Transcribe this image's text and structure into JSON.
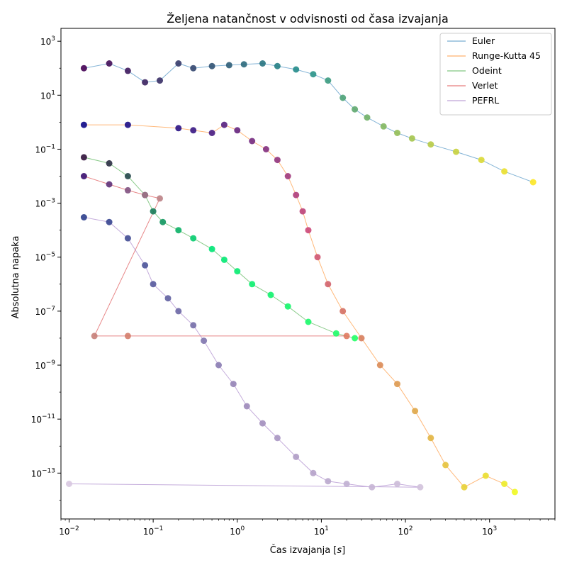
{
  "chart_data": {
    "type": "scatter",
    "title": "Željena natančnost v odvisnosti od časa izvajanja",
    "xlabel": "Čas izvajanja [s]",
    "ylabel": "Absolutna napaka",
    "xscale": "log",
    "yscale": "log",
    "xlim": [
      0.008,
      6000
    ],
    "ylim": [
      2e-15,
      3000
    ],
    "x_tick_exponents": [
      -2,
      -1,
      0,
      1,
      2,
      3
    ],
    "y_tick_exponents": [
      3,
      1,
      -1,
      -3,
      -5,
      -7,
      -9,
      -11,
      -13
    ],
    "grid": false,
    "legend_position": "top-right",
    "series": [
      {
        "name": "Euler",
        "line_color": "#1f77b4",
        "point_color": "#21918c",
        "gradient": [
          "#440154",
          "#21918c",
          "#fde725"
        ],
        "points": [
          [
            0.015,
            100
          ],
          [
            0.03,
            150
          ],
          [
            0.05,
            80
          ],
          [
            0.08,
            30
          ],
          [
            0.12,
            35
          ],
          [
            0.2,
            150
          ],
          [
            0.3,
            100
          ],
          [
            0.5,
            120
          ],
          [
            0.8,
            130
          ],
          [
            1.2,
            140
          ],
          [
            2,
            150
          ],
          [
            3,
            120
          ],
          [
            5,
            90
          ],
          [
            8,
            60
          ],
          [
            12,
            35
          ],
          [
            18,
            8
          ],
          [
            25,
            3
          ],
          [
            35,
            1.5
          ],
          [
            55,
            0.7
          ],
          [
            80,
            0.4
          ],
          [
            120,
            0.25
          ],
          [
            200,
            0.15
          ],
          [
            400,
            0.08
          ],
          [
            800,
            0.04
          ],
          [
            1500,
            0.015
          ],
          [
            3300,
            0.006
          ]
        ]
      },
      {
        "name": "Runge-Kutta 45",
        "line_color": "#ff7f0e",
        "point_color": "#f89540",
        "gradient": [
          "#0d0887",
          "#cc4778",
          "#f0f921"
        ],
        "points": [
          [
            0.015,
            0.8
          ],
          [
            0.05,
            0.8
          ],
          [
            0.2,
            0.6
          ],
          [
            0.3,
            0.5
          ],
          [
            0.5,
            0.4
          ],
          [
            0.7,
            0.8
          ],
          [
            1.0,
            0.5
          ],
          [
            1.5,
            0.2
          ],
          [
            2.2,
            0.1
          ],
          [
            3,
            0.04
          ],
          [
            4,
            0.01
          ],
          [
            5,
            0.002
          ],
          [
            6,
            0.0005
          ],
          [
            7,
            0.0001
          ],
          [
            9,
            1e-05
          ],
          [
            12,
            1e-06
          ],
          [
            18,
            1e-07
          ],
          [
            30,
            1e-08
          ],
          [
            50,
            1e-09
          ],
          [
            80,
            2e-10
          ],
          [
            130,
            2e-11
          ],
          [
            200,
            2e-12
          ],
          [
            300,
            2e-13
          ],
          [
            500,
            3e-14
          ],
          [
            900,
            8e-14
          ],
          [
            1500,
            4e-14
          ],
          [
            2000,
            2e-14
          ]
        ]
      },
      {
        "name": "Odeint",
        "line_color": "#2ca02c",
        "point_color": "#27ad81",
        "gradient": [
          "#30123b",
          "#00e676",
          "#22ff66"
        ],
        "points": [
          [
            0.015,
            0.05
          ],
          [
            0.03,
            0.03
          ],
          [
            0.05,
            0.01
          ],
          [
            0.08,
            0.002
          ],
          [
            0.1,
            0.0005
          ],
          [
            0.13,
            0.0002
          ],
          [
            0.2,
            0.0001
          ],
          [
            0.3,
            5e-05
          ],
          [
            0.5,
            2e-05
          ],
          [
            0.7,
            8e-06
          ],
          [
            1,
            3e-06
          ],
          [
            1.5,
            1e-06
          ],
          [
            2.5,
            4e-07
          ],
          [
            4,
            1.5e-07
          ],
          [
            7,
            4e-08
          ],
          [
            15,
            1.5e-08
          ],
          [
            25,
            1e-08
          ]
        ]
      },
      {
        "name": "Verlet",
        "line_color": "#d62728",
        "point_color": "#b5838d",
        "gradient": [
          "#3b0f70",
          "#b5838d",
          "#e07a5f"
        ],
        "points": [
          [
            0.015,
            0.01
          ],
          [
            0.03,
            0.005
          ],
          [
            0.05,
            0.003
          ],
          [
            0.08,
            0.002
          ],
          [
            0.12,
            0.0015
          ],
          [
            0.02,
            1.2e-08
          ],
          [
            0.05,
            1.2e-08
          ],
          [
            20,
            1.2e-08
          ]
        ]
      },
      {
        "name": "PEFRL",
        "line_color": "#9467bd",
        "point_color": "#c9b3d9",
        "gradient": [
          "#2c3e8c",
          "#9a86b8",
          "#d8c8e0"
        ],
        "points": [
          [
            0.015,
            0.0003
          ],
          [
            0.03,
            0.0002
          ],
          [
            0.05,
            5e-05
          ],
          [
            0.08,
            5e-06
          ],
          [
            0.1,
            1e-06
          ],
          [
            0.15,
            3e-07
          ],
          [
            0.2,
            1e-07
          ],
          [
            0.3,
            3e-08
          ],
          [
            0.4,
            8e-09
          ],
          [
            0.6,
            1e-09
          ],
          [
            0.9,
            2e-10
          ],
          [
            1.3,
            3e-11
          ],
          [
            2,
            7e-12
          ],
          [
            3,
            2e-12
          ],
          [
            5,
            4e-13
          ],
          [
            8,
            1e-13
          ],
          [
            12,
            5e-14
          ],
          [
            20,
            4e-14
          ],
          [
            40,
            3e-14
          ],
          [
            80,
            4e-14
          ],
          [
            150,
            3e-14
          ],
          [
            0.01,
            4e-14
          ]
        ]
      }
    ]
  }
}
